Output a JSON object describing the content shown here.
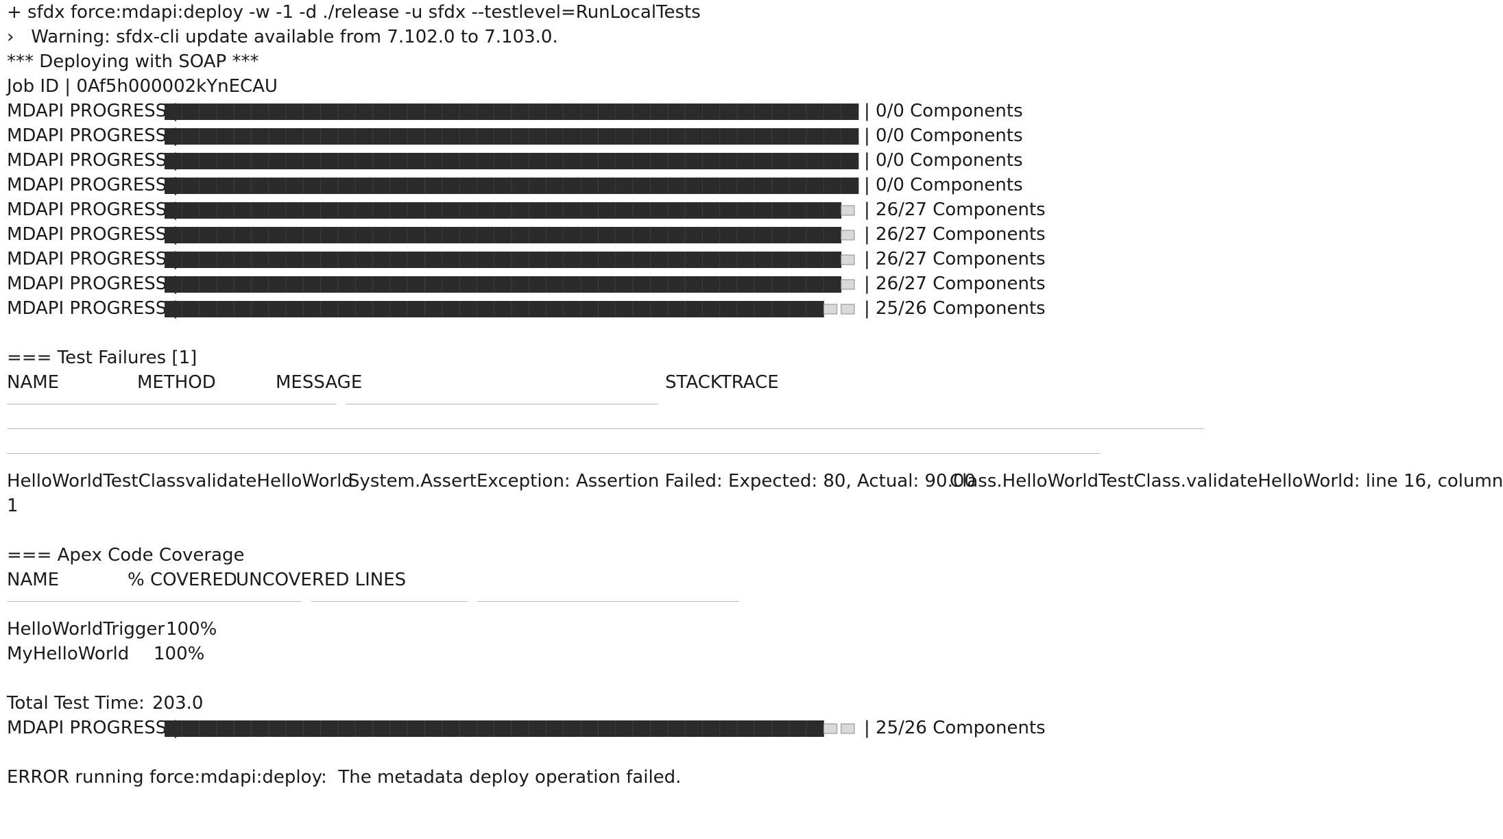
{
  "command": "+ sfdx force:mdapi:deploy -w -1 -d ./release -u sfdx --testlevel=RunLocalTests",
  "warning": "›   Warning: sfdx-cli update available from 7.102.0 to 7.103.0.",
  "deploying": "*** Deploying with SOAP ***",
  "job_id": "Job ID | 0Af5h000002kYnECAU",
  "progress": {
    "label": "MDAPI PROGRESS |",
    "rows": [
      {
        "status": "| 0/0 Components",
        "filled": 0,
        "total": 0
      },
      {
        "status": "| 0/0 Components",
        "filled": 0,
        "total": 0
      },
      {
        "status": "| 0/0 Components",
        "filled": 0,
        "total": 0
      },
      {
        "status": "| 0/0 Components",
        "filled": 0,
        "total": 0
      },
      {
        "status": "| 26/27 Components",
        "filled": 26,
        "total": 27
      },
      {
        "status": "| 26/27 Components",
        "filled": 26,
        "total": 27
      },
      {
        "status": "| 26/27 Components",
        "filled": 26,
        "total": 27
      },
      {
        "status": "| 26/27 Components",
        "filled": 26,
        "total": 27
      },
      {
        "status": "| 25/26 Components",
        "filled": 25,
        "total": 26
      }
    ],
    "final": {
      "status": "| 25/26 Components",
      "filled": 25,
      "total": 26
    }
  },
  "test_failures": {
    "heading": "=== Test Failures [1]",
    "columns": {
      "name": "NAME",
      "method": "METHOD",
      "message": "MESSAGE",
      "stacktrace": "STACKTRACE"
    },
    "row": {
      "name": "HelloWorldTestClass",
      "method": "validateHelloWorld",
      "message": "System.AssertException: Assertion Failed: Expected: 80, Actual: 90.00",
      "stacktrace": "Class.HelloWorldTestClass.validateHelloWorld: line 16, column",
      "stacktrace_wrap": "1"
    }
  },
  "coverage": {
    "heading": "=== Apex Code Coverage",
    "columns": {
      "name": "NAME",
      "covered": "% COVERED",
      "uncovered": "UNCOVERED LINES"
    },
    "rows": [
      {
        "name": "HelloWorldTrigger",
        "covered": "100%"
      },
      {
        "name": "MyHelloWorld",
        "covered": "100%"
      }
    ]
  },
  "total_time": {
    "label": "Total Test Time:",
    "value": "203.0"
  },
  "error": "ERROR running force:mdapi:deploy:  The metadata deploy operation failed.",
  "colors": {
    "text": "#1a1a1a",
    "bar_filled": "#2b2b2b",
    "bar_empty": "#d9d9d9",
    "rule": "#b8b8b8"
  }
}
